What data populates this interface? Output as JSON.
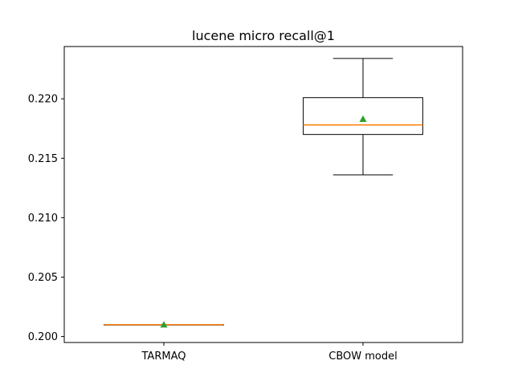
{
  "chart_data": {
    "type": "box",
    "title": "lucene micro recall@1",
    "xlabel": "",
    "ylabel": "",
    "categories": [
      "TARMAQ",
      "CBOW model"
    ],
    "ylim": [
      0.1995,
      0.2244
    ],
    "yticks": [
      0.2,
      0.205,
      0.21,
      0.215,
      0.22
    ],
    "ytick_labels": [
      "0.200",
      "0.205",
      "0.210",
      "0.215",
      "0.220"
    ],
    "boxes": [
      {
        "category": "TARMAQ",
        "whisker_low": 0.201,
        "q1": 0.201,
        "median": 0.201,
        "q3": 0.201,
        "whisker_high": 0.201,
        "mean": 0.201
      },
      {
        "category": "CBOW model",
        "whisker_low": 0.2136,
        "q1": 0.217,
        "median": 0.2178,
        "q3": 0.2201,
        "whisker_high": 0.2234,
        "mean": 0.2183
      }
    ],
    "colors": {
      "box": "#000000",
      "median": "#ff7f0e",
      "mean": "#2ca02c"
    },
    "grid": false,
    "legend": "none"
  }
}
